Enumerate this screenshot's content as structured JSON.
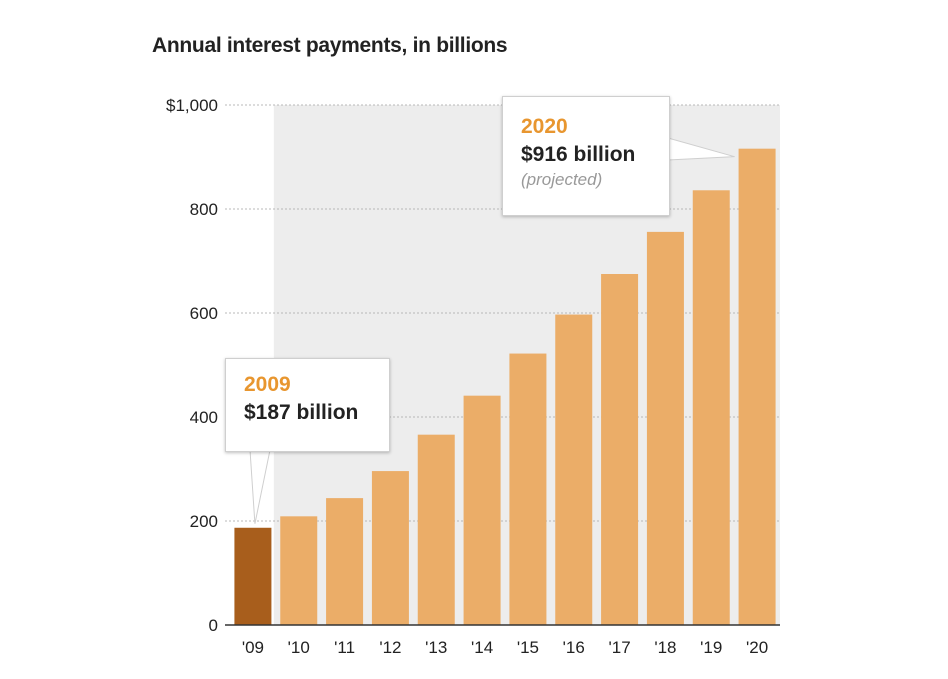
{
  "title": "Annual interest payments, in billions",
  "colors": {
    "bar_actual": "#a85e1c",
    "bar_projected": "#ebad68",
    "projection_bg": "#ededed",
    "grid": "#b8b8b8",
    "axis": "#333333",
    "callout_year": "#e8962f"
  },
  "chart_data": {
    "type": "bar",
    "title": "Annual interest payments, in billions",
    "xlabel": "",
    "ylabel": "",
    "categories": [
      "'09",
      "'10",
      "'11",
      "'12",
      "'13",
      "'14",
      "'15",
      "'16",
      "'17",
      "'18",
      "'19",
      "'20"
    ],
    "values": [
      187,
      209,
      244,
      296,
      366,
      441,
      522,
      597,
      675,
      756,
      836,
      916
    ],
    "projected": [
      false,
      true,
      true,
      true,
      true,
      true,
      true,
      true,
      true,
      true,
      true,
      true
    ],
    "ylim": [
      0,
      1000
    ],
    "yticks": [
      0,
      200,
      400,
      600,
      800,
      1000
    ],
    "ytick_labels": [
      "0",
      "200",
      "400",
      "600",
      "800",
      "$1,000"
    ],
    "grid": true,
    "annotations": [
      {
        "year": "2009",
        "amount": "$187 billion",
        "note": "",
        "category": "'09"
      },
      {
        "year": "2020",
        "amount": "$916 billion",
        "note": "(projected)",
        "category": "'20"
      }
    ]
  }
}
